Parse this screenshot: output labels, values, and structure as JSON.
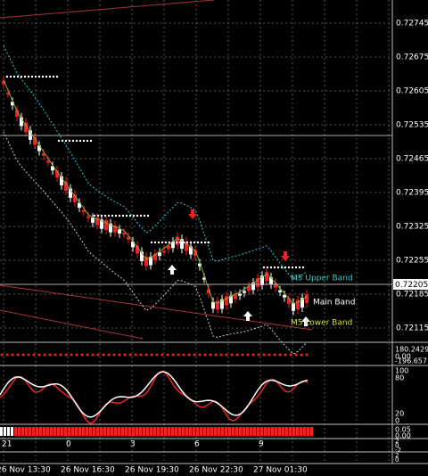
{
  "price_axis": {
    "labels": [
      "0.72745",
      "0.72675",
      "0.72605",
      "0.72535",
      "0.72465",
      "0.72395",
      "0.72325",
      "0.72255",
      "0.72185",
      "0.72115"
    ],
    "current": "0.72205"
  },
  "time_axis": [
    "26 Nov 13:30",
    "26 Nov 16:30",
    "26 Nov 19:30",
    "26 Nov 22:30",
    "27 Nov 01:30"
  ],
  "counts": [
    "21",
    "0",
    "3",
    "6",
    "9"
  ],
  "bands": {
    "upper": "M5 Upper Band",
    "main": "Main Band",
    "lower": "M5 Lower Band"
  },
  "panels": {
    "cci": [
      "180.2429",
      "0.00",
      "-196.657"
    ],
    "stoch": [
      "100",
      "80",
      "20",
      "0"
    ],
    "bars": [
      "0.05",
      "0.00"
    ],
    "p4": [
      "2",
      "0",
      "-2"
    ],
    "p5": [
      "2",
      "0"
    ]
  }
}
